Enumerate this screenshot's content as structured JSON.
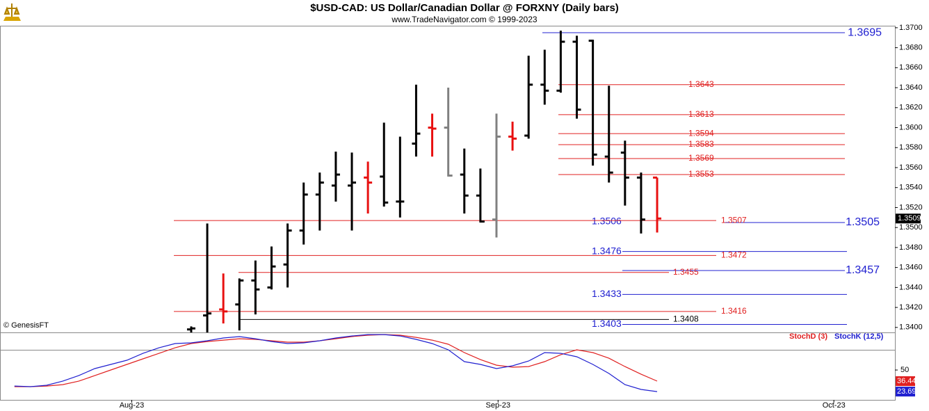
{
  "chart_data": [
    {
      "type": "ohlc",
      "title": "$USD-CAD:  US Dollar/Canadian Dollar @ FORXNY  (Daily bars)",
      "subtitle": "www.TradeNavigator.com © 1999-2023",
      "watermark": "© GenesisFT",
      "open": [
        1.3398,
        1.3412,
        1.3418,
        1.3423,
        1.3447,
        1.344,
        1.3463,
        1.3497,
        1.3533,
        1.3542,
        1.3542,
        1.355,
        1.3551,
        1.3526,
        1.3584,
        1.36,
        1.36,
        1.3553,
        1.3532,
        1.3508,
        1.3591,
        1.3592,
        1.3643,
        1.3637,
        1.3686,
        1.3687,
        1.3571,
        1.3575,
        1.355,
        1.355
      ],
      "high": [
        1.3401,
        1.3504,
        1.3454,
        1.3449,
        1.3467,
        1.3481,
        1.3504,
        1.3545,
        1.3555,
        1.3576,
        1.3575,
        1.3566,
        1.3605,
        1.3591,
        1.3643,
        1.3614,
        1.364,
        1.3579,
        1.3559,
        1.3614,
        1.3606,
        1.3672,
        1.3678,
        1.3697,
        1.3692,
        1.3688,
        1.3642,
        1.3587,
        1.3555,
        1.355
      ],
      "low": [
        1.3395,
        1.3395,
        1.3404,
        1.3397,
        1.3413,
        1.3438,
        1.344,
        1.3483,
        1.3497,
        1.3526,
        1.3497,
        1.3514,
        1.3521,
        1.351,
        1.3571,
        1.3571,
        1.3551,
        1.3514,
        1.3505,
        1.349,
        1.3577,
        1.3589,
        1.3623,
        1.3635,
        1.3609,
        1.3562,
        1.3545,
        1.3522,
        1.3494,
        1.3495
      ],
      "close": [
        1.3399,
        1.3414,
        1.3416,
        1.3447,
        1.3438,
        1.3461,
        1.3497,
        1.3533,
        1.3545,
        1.3553,
        1.3545,
        1.3545,
        1.3525,
        1.3526,
        1.3594,
        1.3599,
        1.3552,
        1.3532,
        1.3506,
        1.3591,
        1.3589,
        1.3643,
        1.3637,
        1.3686,
        1.3618,
        1.3573,
        1.3555,
        1.355,
        1.3508,
        1.3509
      ],
      "colors": [
        "#000000",
        "#000000",
        "#e81010",
        "#000000",
        "#000000",
        "#000000",
        "#000000",
        "#000000",
        "#000000",
        "#000000",
        "#000000",
        "#e81010",
        "#000000",
        "#000000",
        "#000000",
        "#e81010",
        "#808080",
        "#000000",
        "#000000",
        "#808080",
        "#e81010",
        "#000000",
        "#000000",
        "#000000",
        "#000000",
        "#000000",
        "#000000",
        "#000000",
        "#000000",
        "#e81010"
      ],
      "last_price": 1.3509,
      "levels": [
        {
          "value": 1.3695,
          "color": "#2020d0"
        },
        {
          "value": 1.3505,
          "color": "#2020d0"
        },
        {
          "value": 1.3457,
          "color": "#2020d0"
        },
        {
          "value": 1.3506,
          "color": "#2020d0"
        },
        {
          "value": 1.3476,
          "color": "#2020d0"
        },
        {
          "value": 1.3433,
          "color": "#2020d0"
        },
        {
          "value": 1.3403,
          "color": "#2020d0"
        },
        {
          "value": 1.3643,
          "color": "#e02020"
        },
        {
          "value": 1.3613,
          "color": "#e02020"
        },
        {
          "value": 1.3594,
          "color": "#e02020"
        },
        {
          "value": 1.3583,
          "color": "#e02020"
        },
        {
          "value": 1.3569,
          "color": "#e02020"
        },
        {
          "value": 1.3553,
          "color": "#e02020"
        },
        {
          "value": 1.3507,
          "color": "#e02020"
        },
        {
          "value": 1.3472,
          "color": "#e02020"
        },
        {
          "value": 1.3455,
          "color": "#e02020"
        },
        {
          "value": 1.3416,
          "color": "#e02020"
        },
        {
          "value": 1.3408,
          "color": "#000000"
        }
      ],
      "ylim": [
        1.3395,
        1.3702
      ],
      "yticks": [
        {
          "value": 1.34,
          "label": "1.3400"
        },
        {
          "value": 1.342,
          "label": "1.3420"
        },
        {
          "value": 1.344,
          "label": "1.3440"
        },
        {
          "value": 1.346,
          "label": "1.3460"
        },
        {
          "value": 1.348,
          "label": "1.3480"
        },
        {
          "value": 1.35,
          "label": "1.3500"
        },
        {
          "value": 1.352,
          "label": "1.3520"
        },
        {
          "value": 1.354,
          "label": "1.3540"
        },
        {
          "value": 1.356,
          "label": "1.3560"
        },
        {
          "value": 1.358,
          "label": "1.3580"
        },
        {
          "value": 1.36,
          "label": "1.3600"
        },
        {
          "value": 1.362,
          "label": "1.3620"
        },
        {
          "value": 1.364,
          "label": "1.3640"
        },
        {
          "value": 1.366,
          "label": "1.3660"
        },
        {
          "value": 1.368,
          "label": "1.3680"
        },
        {
          "value": 1.37,
          "label": "1.3700"
        }
      ],
      "xlim": [
        -11.9,
        43.8
      ],
      "xticks": [
        {
          "value": -3.7,
          "label": "Aug-23"
        },
        {
          "value": 19.1,
          "label": "Sep-23"
        },
        {
          "value": 40,
          "label": "Oct-23"
        }
      ]
    },
    {
      "type": "line",
      "series": [
        {
          "name": "StochD (3)",
          "color": "#e02020",
          "values": [
            29.7,
            29.7,
            30.5,
            32.2,
            36.4,
            43.2,
            50.0,
            56.8,
            63.6,
            70.3,
            77.1,
            82.2,
            84.7,
            86.4,
            88.1,
            87.3,
            85.6,
            83.9,
            83.9,
            85.6,
            88.1,
            90.7,
            92.4,
            93.2,
            92.4,
            89.8,
            86.4,
            81.4,
            71.2,
            62.7,
            55.9,
            53.4,
            54.2,
            60.2,
            68.6,
            74.6,
            71.2,
            64.4,
            54.2,
            44.9,
            36.44
          ]
        },
        {
          "name": "StochK (12,5)",
          "color": "#2020d0",
          "values": [
            30.5,
            29.7,
            31.4,
            36.4,
            43.2,
            51.7,
            56.8,
            61.9,
            70.3,
            77.1,
            82.2,
            83.1,
            85.6,
            89.0,
            90.7,
            88.1,
            84.7,
            82.2,
            83.1,
            85.6,
            89.0,
            91.5,
            93.2,
            93.2,
            91.5,
            87.3,
            82.2,
            74.6,
            60.2,
            56.8,
            51.7,
            55.1,
            61.0,
            71.2,
            70.3,
            66.1,
            56.8,
            45.8,
            32.2,
            26.3,
            23.69
          ]
        }
      ],
      "ylim": [
        13.6,
        95.8
      ],
      "yticks": [
        50
      ]
    }
  ]
}
